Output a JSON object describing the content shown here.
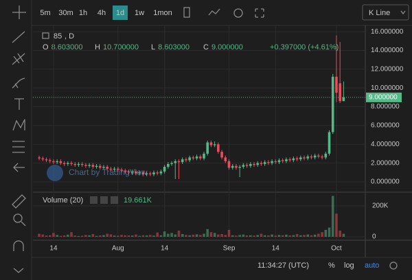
{
  "toolbar": {
    "intervals": [
      {
        "label": "5m"
      },
      {
        "label": "30m"
      },
      {
        "label": "1h"
      },
      {
        "label": "4h"
      },
      {
        "label": "1d",
        "selected": true
      },
      {
        "label": "1w"
      },
      {
        "label": "1mon"
      }
    ],
    "chart_style": "K Line"
  },
  "symbol": "85",
  "resolution": ", D",
  "ohlc_legend": [
    {
      "label": "O",
      "value": "8.603000"
    },
    {
      "label": "H",
      "value": "10.700000"
    },
    {
      "label": "L",
      "value": "8.603000"
    },
    {
      "label": "C",
      "value": "9.000000"
    }
  ],
  "change": "+0.397000 (+4.61%)",
  "watermark": "Chart by TradingView",
  "volume_legend": {
    "title": "Volume (20)",
    "value": "19.661K"
  },
  "status": {
    "time": "11:34:27 (UTC)",
    "percent": "%",
    "log": "log",
    "auto": "auto"
  },
  "chart_data": {
    "type": "candlestick",
    "up_color": "#53b987",
    "down_color": "#eb4d5c",
    "categories": [
      null,
      null,
      null,
      null,
      "14",
      null,
      null,
      null,
      null,
      null,
      null,
      null,
      null,
      null,
      null,
      null,
      null,
      null,
      null,
      null,
      null,
      null,
      "Aug",
      null,
      null,
      null,
      null,
      null,
      null,
      null,
      null,
      null,
      null,
      null,
      null,
      "14",
      null,
      null,
      null,
      null,
      null,
      null,
      null,
      null,
      null,
      null,
      null,
      null,
      null,
      null,
      null,
      null,
      null,
      "Sep",
      null,
      null,
      null,
      null,
      null,
      null,
      null,
      null,
      null,
      null,
      null,
      null,
      "14",
      null,
      null,
      null,
      null,
      null,
      null,
      null,
      null,
      null,
      null,
      null,
      null,
      null,
      null,
      null,
      null,
      "Oct",
      null,
      null
    ],
    "open": [
      2.6,
      2.5,
      2.4,
      2.3,
      2.2,
      2.1,
      2.2,
      2.0,
      1.9,
      2.0,
      1.9,
      1.8,
      1.9,
      1.8,
      1.7,
      1.8,
      1.6,
      1.7,
      1.5,
      1.6,
      1.4,
      1.3,
      1.4,
      1.3,
      1.2,
      1.1,
      1.0,
      1.1,
      0.9,
      1.0,
      0.8,
      0.9,
      0.8,
      1.0,
      0.9,
      1.1,
      1.6,
      1.9,
      2.0,
      2.2,
      2.1,
      2.4,
      2.3,
      2.6,
      2.5,
      2.7,
      2.5,
      3.0,
      4.2,
      3.9,
      4.0,
      3.2,
      2.6,
      2.2,
      1.5,
      1.7,
      1.5,
      1.6,
      1.8,
      1.7,
      1.9,
      1.8,
      2.0,
      1.9,
      2.1,
      2.0,
      2.2,
      2.1,
      2.3,
      2.2,
      2.4,
      2.3,
      2.5,
      2.4,
      2.6,
      2.5,
      2.7,
      2.6,
      2.8,
      2.7,
      2.6,
      3.0,
      5.3,
      11.2,
      10.5,
      8.603
    ],
    "high": [
      2.8,
      2.7,
      2.6,
      2.5,
      2.4,
      2.4,
      2.4,
      2.2,
      2.2,
      2.2,
      2.1,
      2.1,
      2.1,
      2.0,
      2.0,
      2.0,
      1.9,
      1.9,
      1.8,
      1.8,
      1.6,
      1.6,
      1.6,
      1.5,
      1.4,
      1.3,
      1.3,
      1.3,
      1.2,
      1.2,
      1.1,
      1.1,
      1.2,
      1.2,
      1.3,
      1.8,
      2.1,
      2.2,
      2.4,
      2.4,
      2.6,
      2.6,
      2.8,
      2.8,
      2.9,
      2.9,
      3.2,
      4.4,
      4.4,
      4.3,
      4.2,
      3.4,
      2.8,
      2.4,
      1.9,
      1.9,
      1.8,
      2.0,
      2.0,
      2.1,
      2.1,
      2.2,
      2.2,
      2.3,
      2.3,
      2.4,
      2.4,
      2.5,
      2.5,
      2.6,
      2.6,
      2.7,
      2.7,
      2.8,
      2.8,
      2.9,
      2.9,
      3.0,
      3.0,
      2.9,
      3.2,
      5.5,
      11.5,
      15.6,
      14.9,
      10.7
    ],
    "low": [
      2.3,
      2.2,
      2.1,
      2.0,
      1.9,
      1.9,
      1.8,
      1.7,
      1.7,
      1.7,
      1.6,
      1.6,
      1.6,
      1.5,
      1.5,
      1.4,
      1.4,
      1.3,
      1.3,
      1.2,
      1.1,
      1.1,
      1.1,
      1.0,
      0.9,
      0.8,
      0.8,
      0.7,
      0.7,
      0.6,
      0.6,
      0.6,
      0.6,
      0.7,
      0.7,
      0.9,
      1.4,
      1.7,
      0.3,
      0.3,
      1.9,
      2.1,
      2.1,
      2.3,
      2.3,
      2.3,
      2.3,
      2.8,
      3.7,
      3.7,
      3.0,
      2.4,
      2.0,
      1.3,
      1.3,
      1.3,
      0.5,
      1.4,
      1.5,
      1.5,
      1.6,
      1.6,
      1.7,
      1.7,
      1.8,
      1.8,
      1.9,
      1.9,
      2.0,
      2.0,
      2.1,
      2.1,
      2.2,
      2.2,
      2.3,
      2.3,
      2.4,
      2.4,
      2.5,
      2.4,
      2.4,
      2.8,
      5.1,
      8.5,
      8.4,
      8.603
    ],
    "close": [
      2.5,
      2.4,
      2.3,
      2.2,
      2.1,
      2.2,
      2.0,
      1.9,
      2.0,
      1.9,
      1.8,
      1.9,
      1.8,
      1.7,
      1.8,
      1.6,
      1.7,
      1.5,
      1.6,
      1.4,
      1.3,
      1.4,
      1.3,
      1.2,
      1.1,
      1.0,
      1.1,
      0.9,
      1.0,
      0.8,
      0.9,
      0.8,
      1.0,
      0.9,
      1.1,
      1.6,
      1.9,
      2.0,
      2.2,
      2.1,
      2.4,
      2.3,
      2.6,
      2.5,
      2.7,
      2.5,
      3.0,
      4.2,
      3.9,
      4.0,
      3.2,
      2.6,
      2.2,
      1.5,
      1.7,
      1.5,
      1.6,
      1.8,
      1.7,
      1.9,
      1.8,
      2.0,
      1.9,
      2.1,
      2.0,
      2.2,
      2.1,
      2.3,
      2.2,
      2.4,
      2.3,
      2.5,
      2.4,
      2.6,
      2.5,
      2.7,
      2.6,
      2.8,
      2.7,
      2.6,
      3.0,
      5.3,
      11.2,
      9.5,
      8.6,
      9.0
    ],
    "volume": [
      20000,
      15000,
      8000,
      10000,
      25000,
      12000,
      6000,
      9000,
      14000,
      30000,
      8000,
      5000,
      7000,
      12000,
      10000,
      18000,
      6000,
      9000,
      11000,
      20000,
      16000,
      8000,
      7000,
      12000,
      10000,
      9000,
      8000,
      15000,
      6000,
      10000,
      9000,
      12000,
      8000,
      28000,
      10000,
      35000,
      20000,
      25000,
      15000,
      40000,
      18000,
      12000,
      10000,
      14000,
      16000,
      12000,
      20000,
      50000,
      30000,
      25000,
      15000,
      18000,
      12000,
      45000,
      10000,
      8000,
      12000,
      15000,
      9000,
      10000,
      8000,
      12000,
      20000,
      10000,
      9000,
      15000,
      8000,
      12000,
      10000,
      14000,
      9000,
      11000,
      18000,
      10000,
      12000,
      15000,
      10000,
      14000,
      20000,
      30000,
      45000,
      60000,
      265000,
      150000,
      40000,
      19661
    ],
    "ylim": [
      -1.1,
      16.6
    ],
    "yticks": [
      {
        "value": 0,
        "label": "0.000000"
      },
      {
        "value": 2,
        "label": "2.000000"
      },
      {
        "value": 4,
        "label": "4.000000"
      },
      {
        "value": 6,
        "label": "6.000000"
      },
      {
        "value": 8,
        "label": "8.000000"
      },
      {
        "value": 10,
        "label": "10.000000"
      },
      {
        "value": 12,
        "label": "12.000000"
      },
      {
        "value": 14,
        "label": "14.000000"
      },
      {
        "value": 16,
        "label": "16.000000"
      }
    ],
    "last_price": {
      "value": 9,
      "label": "9.000000"
    },
    "y2lim": [
      -22000,
      289000
    ],
    "y2ticks": [
      0,
      {
        "value": 200000,
        "label": "200K"
      }
    ],
    "grid": true
  }
}
